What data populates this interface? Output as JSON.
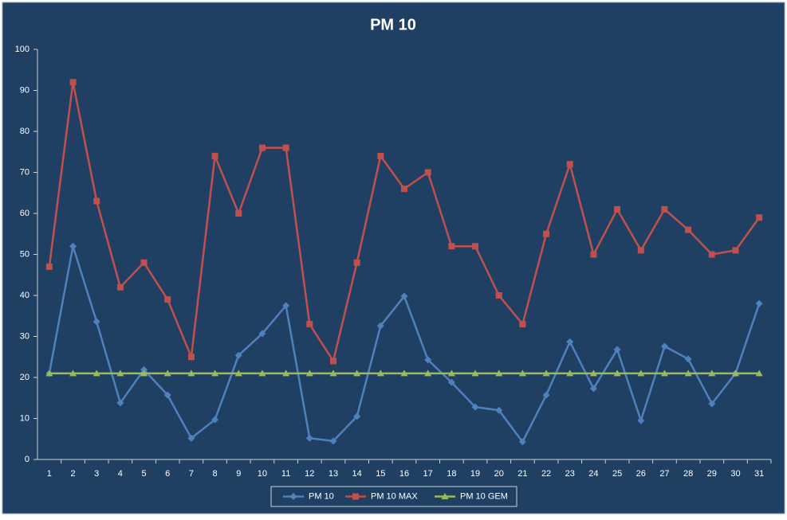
{
  "chart_data": {
    "type": "line",
    "title": "PM 10",
    "categories": [
      "1",
      "2",
      "3",
      "4",
      "5",
      "6",
      "7",
      "8",
      "9",
      "10",
      "11",
      "12",
      "13",
      "14",
      "15",
      "16",
      "17",
      "18",
      "19",
      "20",
      "21",
      "22",
      "23",
      "24",
      "25",
      "26",
      "27",
      "28",
      "29",
      "30",
      "31"
    ],
    "series": [
      {
        "name": "PM 10",
        "color": "#4f81bd",
        "marker": "diamond",
        "values": [
          21,
          52,
          33.6,
          13.8,
          21.9,
          15.7,
          5.2,
          9.7,
          25.4,
          30.7,
          37.5,
          5.2,
          4.5,
          10.5,
          32.6,
          39.8,
          24.3,
          18.8,
          12.8,
          12,
          4.3,
          15.7,
          28.7,
          17.3,
          26.8,
          9.5,
          27.6,
          24.5,
          13.6,
          21,
          38
        ]
      },
      {
        "name": "PM 10 MAX",
        "color": "#c0504d",
        "marker": "square",
        "values": [
          47,
          92,
          63,
          42,
          48,
          39,
          25,
          74,
          60,
          76,
          76,
          33,
          24,
          48,
          74,
          66,
          70,
          52,
          52,
          40,
          33,
          55,
          72,
          50,
          61,
          51,
          61,
          56,
          50,
          51,
          59
        ]
      },
      {
        "name": "PM 10 GEM",
        "color": "#9bbb59",
        "marker": "triangle",
        "values": [
          21,
          21,
          21,
          21,
          21,
          21,
          21,
          21,
          21,
          21,
          21,
          21,
          21,
          21,
          21,
          21,
          21,
          21,
          21,
          21,
          21,
          21,
          21,
          21,
          21,
          21,
          21,
          21,
          21,
          21,
          21
        ]
      }
    ],
    "ylim": [
      0,
      100
    ],
    "yticks": [
      0,
      10,
      20,
      30,
      40,
      50,
      60,
      70,
      80,
      90,
      100
    ],
    "grid": false,
    "legend": "bottom"
  }
}
